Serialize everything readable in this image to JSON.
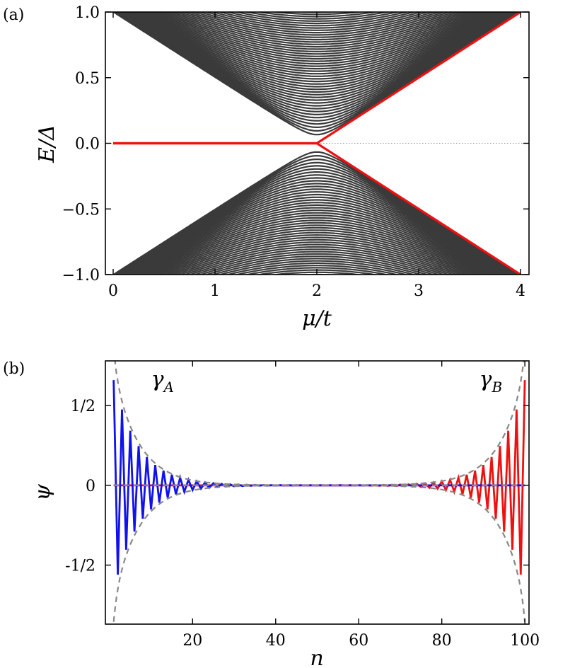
{
  "chart_data": [
    {
      "panel_label": "(a)",
      "type": "line",
      "xlabel": "μ/t",
      "ylabel": "E/Δ",
      "xlim": [
        0,
        4
      ],
      "ylim": [
        -1,
        1
      ],
      "x_ticks": [
        "0",
        "1",
        "2",
        "3",
        "4"
      ],
      "x_tick_values": [
        0,
        1,
        2,
        3,
        4
      ],
      "y_ticks": [
        "−1.0",
        "−0.5",
        "0.0",
        "0.5",
        "1.0"
      ],
      "y_tick_values": [
        -1,
        -0.5,
        0,
        0.5,
        1
      ],
      "series": [
        {
          "role": "bulk bands",
          "color": "#3a3a3a",
          "band_count": 48,
          "band_edge_at_x": 2,
          "top_value_at_x0": 1
        },
        {
          "role": "lowest mode",
          "color": "#ee1111",
          "x": [
            0,
            1.9,
            2,
            4
          ],
          "y": [
            0,
            0,
            0,
            1
          ]
        },
        {
          "role": "lowest mode (negative)",
          "color": "#ee1111",
          "x": [
            0,
            1.9,
            2,
            4
          ],
          "y": [
            0,
            0,
            0,
            -1
          ]
        }
      ],
      "reference_line": {
        "y": 0,
        "style": "dotted",
        "color": "#999999"
      }
    },
    {
      "panel_label": "(b)",
      "type": "line",
      "xlabel": "n",
      "ylabel": "ψ",
      "xlim": [
        -1,
        101
      ],
      "ylim": [
        -0.87,
        0.78
      ],
      "x_ticks": [
        "20",
        "40",
        "60",
        "80",
        "100"
      ],
      "x_tick_values": [
        20,
        40,
        60,
        80,
        100
      ],
      "y_ticks": [
        "1/2",
        "0",
        "-1/2"
      ],
      "y_tick_values": [
        0.5,
        0,
        -0.5
      ],
      "annotations": [
        {
          "text": "γ",
          "subscript": "A",
          "x": 10,
          "y": 0.62
        },
        {
          "text": "γ",
          "subscript": "B",
          "x": 89,
          "y": 0.62
        }
      ],
      "series": [
        {
          "role": "left-localized mode",
          "color": "#1111ee",
          "sites": [
            1,
            100
          ],
          "amplitude": 0.66,
          "decay_per_site": 0.72
        },
        {
          "role": "right-localized mode",
          "color": "#ee1111",
          "sites": [
            1,
            100
          ],
          "amplitude": 0.66,
          "decay_per_site": 0.72
        },
        {
          "role": "envelope",
          "color": "#888888",
          "style": "dashed"
        }
      ]
    }
  ]
}
